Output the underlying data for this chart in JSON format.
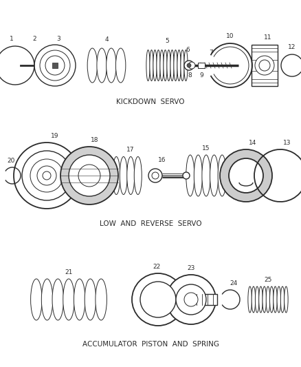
{
  "background_color": "#ffffff",
  "line_color": "#2a2a2a",
  "section1_label": "KICKDOWN  SERVO",
  "section2_label": "LOW  AND  REVERSE  SERVO",
  "section3_label": "ACCUMULATOR  PISTON  AND  SPRING",
  "label_fontsize": 7.5,
  "number_fontsize": 6.5,
  "fig_width": 4.38,
  "fig_height": 5.33,
  "dpi": 100
}
